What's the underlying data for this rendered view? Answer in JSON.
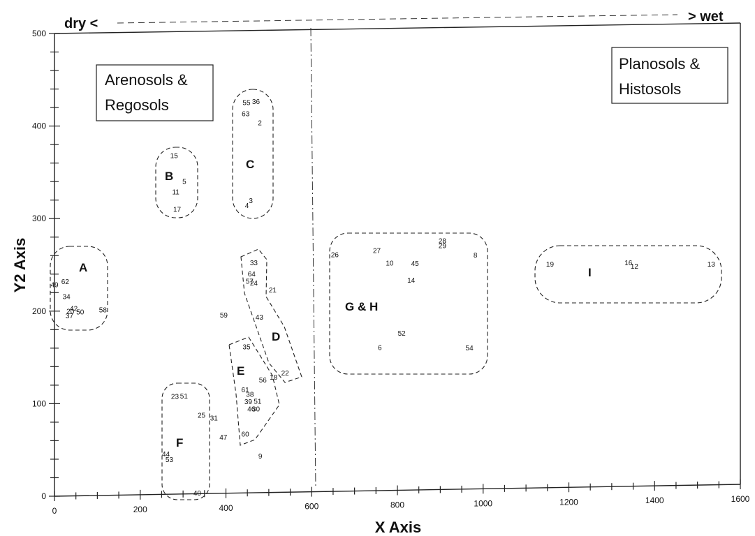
{
  "chart_data": {
    "type": "scatter",
    "title": "",
    "xlabel": "X Axis",
    "ylabel": "Y2 Axis",
    "xlim": [
      0,
      1600
    ],
    "ylim": [
      0,
      500
    ],
    "x_ticks": [
      "0",
      "200",
      "400",
      "600",
      "800",
      "1000",
      "1200",
      "1400",
      "1600"
    ],
    "y_ticks": [
      "0",
      "100",
      "200",
      "300",
      "400",
      "500"
    ],
    "gradient": {
      "left": "dry <",
      "right": "> wet"
    },
    "boxes": [
      {
        "line1": "Arenosols &",
        "line2": "Regosols"
      },
      {
        "line1": "Planosols &",
        "line2": "Histosols"
      }
    ],
    "groups": [
      "A",
      "B",
      "C",
      "D",
      "E",
      "F",
      "G & H",
      "I"
    ],
    "points": [
      {
        "label": "36",
        "x": 470,
        "y": 423
      },
      {
        "label": "55",
        "x": 448,
        "y": 422
      },
      {
        "label": "63",
        "x": 446,
        "y": 410
      },
      {
        "label": "2",
        "x": 479,
        "y": 400
      },
      {
        "label": "3",
        "x": 458,
        "y": 316
      },
      {
        "label": "4",
        "x": 449,
        "y": 311
      },
      {
        "label": "15",
        "x": 279,
        "y": 366
      },
      {
        "label": "5",
        "x": 303,
        "y": 338
      },
      {
        "label": "11",
        "x": 283,
        "y": 327
      },
      {
        "label": "17",
        "x": 286,
        "y": 308
      },
      {
        "label": "62",
        "x": 25,
        "y": 232
      },
      {
        "label": "49",
        "x": 0,
        "y": 229
      },
      {
        "label": "34",
        "x": 28,
        "y": 216
      },
      {
        "label": "42",
        "x": 45,
        "y": 203
      },
      {
        "label": "20",
        "x": 37,
        "y": 200
      },
      {
        "label": "50",
        "x": 60,
        "y": 199
      },
      {
        "label": "37",
        "x": 35,
        "y": 195
      },
      {
        "label": "58",
        "x": 113,
        "y": 201
      },
      {
        "label": "33",
        "x": 465,
        "y": 249
      },
      {
        "label": "64",
        "x": 460,
        "y": 237
      },
      {
        "label": "57",
        "x": 455,
        "y": 229
      },
      {
        "label": "24",
        "x": 465,
        "y": 227
      },
      {
        "label": "21",
        "x": 509,
        "y": 219
      },
      {
        "label": "43",
        "x": 478,
        "y": 190
      },
      {
        "label": "59",
        "x": 395,
        "y": 193
      },
      {
        "label": "35",
        "x": 448,
        "y": 158
      },
      {
        "label": "56",
        "x": 486,
        "y": 122
      },
      {
        "label": "18",
        "x": 511,
        "y": 125
      },
      {
        "label": "22",
        "x": 538,
        "y": 129
      },
      {
        "label": "61",
        "x": 445,
        "y": 112
      },
      {
        "label": "38",
        "x": 456,
        "y": 107
      },
      {
        "label": "39",
        "x": 452,
        "y": 99
      },
      {
        "label": "51",
        "x": 474,
        "y": 99
      },
      {
        "label": "46",
        "x": 459,
        "y": 91
      },
      {
        "label": "30",
        "x": 470,
        "y": 91
      },
      {
        "label": "60",
        "x": 445,
        "y": 64
      },
      {
        "label": "47",
        "x": 394,
        "y": 61
      },
      {
        "label": "9",
        "x": 480,
        "y": 40
      },
      {
        "label": "23",
        "x": 281,
        "y": 106
      },
      {
        "label": "51",
        "x": 302,
        "y": 106
      },
      {
        "label": "25",
        "x": 343,
        "y": 85
      },
      {
        "label": "31",
        "x": 372,
        "y": 82
      },
      {
        "label": "44",
        "x": 260,
        "y": 44
      },
      {
        "label": "53",
        "x": 268,
        "y": 38
      },
      {
        "label": "40",
        "x": 333,
        "y": 1
      },
      {
        "label": "26",
        "x": 654,
        "y": 256
      },
      {
        "label": "27",
        "x": 752,
        "y": 260
      },
      {
        "label": "10",
        "x": 782,
        "y": 246
      },
      {
        "label": "45",
        "x": 841,
        "y": 245
      },
      {
        "label": "28",
        "x": 905,
        "y": 269
      },
      {
        "label": "29",
        "x": 905,
        "y": 264
      },
      {
        "label": "8",
        "x": 982,
        "y": 253
      },
      {
        "label": "14",
        "x": 832,
        "y": 227
      },
      {
        "label": "52",
        "x": 810,
        "y": 170
      },
      {
        "label": "6",
        "x": 759,
        "y": 155
      },
      {
        "label": "54",
        "x": 968,
        "y": 153
      },
      {
        "label": "19",
        "x": 1156,
        "y": 242
      },
      {
        "label": "16",
        "x": 1339,
        "y": 242
      },
      {
        "label": "12",
        "x": 1353,
        "y": 238
      },
      {
        "label": "13",
        "x": 1532,
        "y": 239
      }
    ]
  }
}
